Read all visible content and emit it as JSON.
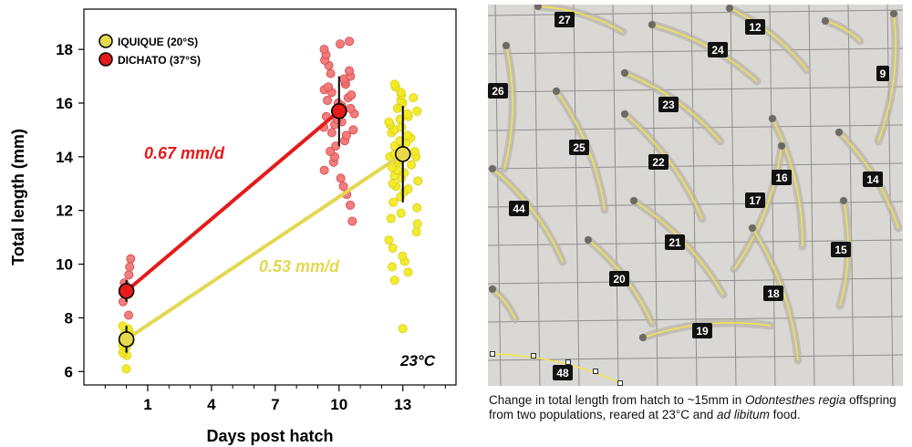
{
  "chart_data": {
    "type": "scatter",
    "xlabel": "Days post hatch",
    "ylabel": "Total length (mm)",
    "xlim": [
      -2,
      15.5
    ],
    "ylim": [
      5.5,
      19.5
    ],
    "x_ticks": [
      1,
      4,
      7,
      10,
      13
    ],
    "x_minor_ticks": [
      -1,
      0,
      2,
      3,
      5,
      6,
      8,
      9,
      11,
      12,
      14,
      15
    ],
    "y_ticks": [
      6,
      8,
      10,
      12,
      14,
      16,
      18
    ],
    "annotation": "23°C",
    "legend_position": "top-left",
    "series": [
      {
        "name": "IQUIQUE (20°S)",
        "color": "#f2ea26",
        "mean_color": "#e8d94c",
        "line_color": "#e3d84f",
        "label_color": "#e3d84f",
        "rate_label": "0.53 mm/d",
        "means": [
          {
            "x": 0,
            "y": 7.2,
            "sd": 0.5
          },
          {
            "x": 13,
            "y": 14.1,
            "sd": 1.8
          }
        ],
        "samples": [
          {
            "x": 0,
            "y": [
              6.1,
              6.6,
              6.7,
              6.8,
              6.9,
              7.0,
              7.0,
              7.1,
              7.2,
              7.3,
              7.4,
              7.5,
              7.6,
              7.7
            ]
          },
          {
            "x": 13,
            "y": [
              7.6,
              9.4,
              9.7,
              9.9,
              10.1,
              10.3,
              10.6,
              10.9,
              11.2,
              11.5,
              11.7,
              11.9,
              12.1,
              12.3,
              12.5,
              12.7,
              12.8,
              12.9,
              13.0,
              13.1,
              13.2,
              13.3,
              13.4,
              13.5,
              13.6,
              13.7,
              13.8,
              13.9,
              14.0,
              14.0,
              14.1,
              14.2,
              14.3,
              14.4,
              14.5,
              14.6,
              14.7,
              14.8,
              14.9,
              15.0,
              15.1,
              15.2,
              15.3,
              15.4,
              15.5,
              15.6,
              15.7,
              15.8,
              15.9,
              16.0,
              16.1,
              16.2,
              16.3,
              16.4,
              16.6,
              16.7
            ]
          }
        ]
      },
      {
        "name": "DICHATO (37°S)",
        "color": "#f07676",
        "mean_color": "#e51a1a",
        "line_color": "#e51a1a",
        "label_color": "#e51a1a",
        "rate_label": "0.67 mm/d",
        "means": [
          {
            "x": 0,
            "y": 9.0,
            "sd": 0.4
          },
          {
            "x": 10,
            "y": 15.7,
            "sd": 1.3
          }
        ],
        "samples": [
          {
            "x": 0,
            "y": [
              8.1,
              8.6,
              9.3,
              9.6,
              9.9,
              10.2
            ]
          },
          {
            "x": 10,
            "y": [
              11.6,
              12.2,
              12.6,
              12.9,
              13.2,
              13.5,
              13.8,
              14.0,
              14.2,
              14.4,
              14.6,
              14.8,
              14.9,
              15.0,
              15.1,
              15.2,
              15.3,
              15.4,
              15.5,
              15.6,
              15.7,
              15.8,
              15.9,
              16.0,
              16.1,
              16.2,
              16.3,
              16.4,
              16.5,
              16.6,
              16.7,
              16.8,
              16.9,
              17.0,
              17.1,
              17.2,
              17.4,
              17.6,
              17.8,
              18.0,
              18.2,
              18.3
            ]
          }
        ]
      }
    ]
  },
  "photo": {
    "background": "#d9d8d4",
    "grid_color": "#8e8e8e",
    "trace_color": "#f0e74a",
    "labels": [
      "27",
      "24",
      "12",
      "9",
      "26",
      "23",
      "25",
      "22",
      "16",
      "14",
      "17",
      "44",
      "21",
      "15",
      "20",
      "18",
      "19",
      "48"
    ]
  },
  "caption": {
    "p1": "Change in total length from hatch to ~15mm in ",
    "p2": "Odontesthes regia",
    "p3": " offspring from two populations, reared at 23°C and ",
    "p4": "ad libitum",
    "p5": " food."
  }
}
